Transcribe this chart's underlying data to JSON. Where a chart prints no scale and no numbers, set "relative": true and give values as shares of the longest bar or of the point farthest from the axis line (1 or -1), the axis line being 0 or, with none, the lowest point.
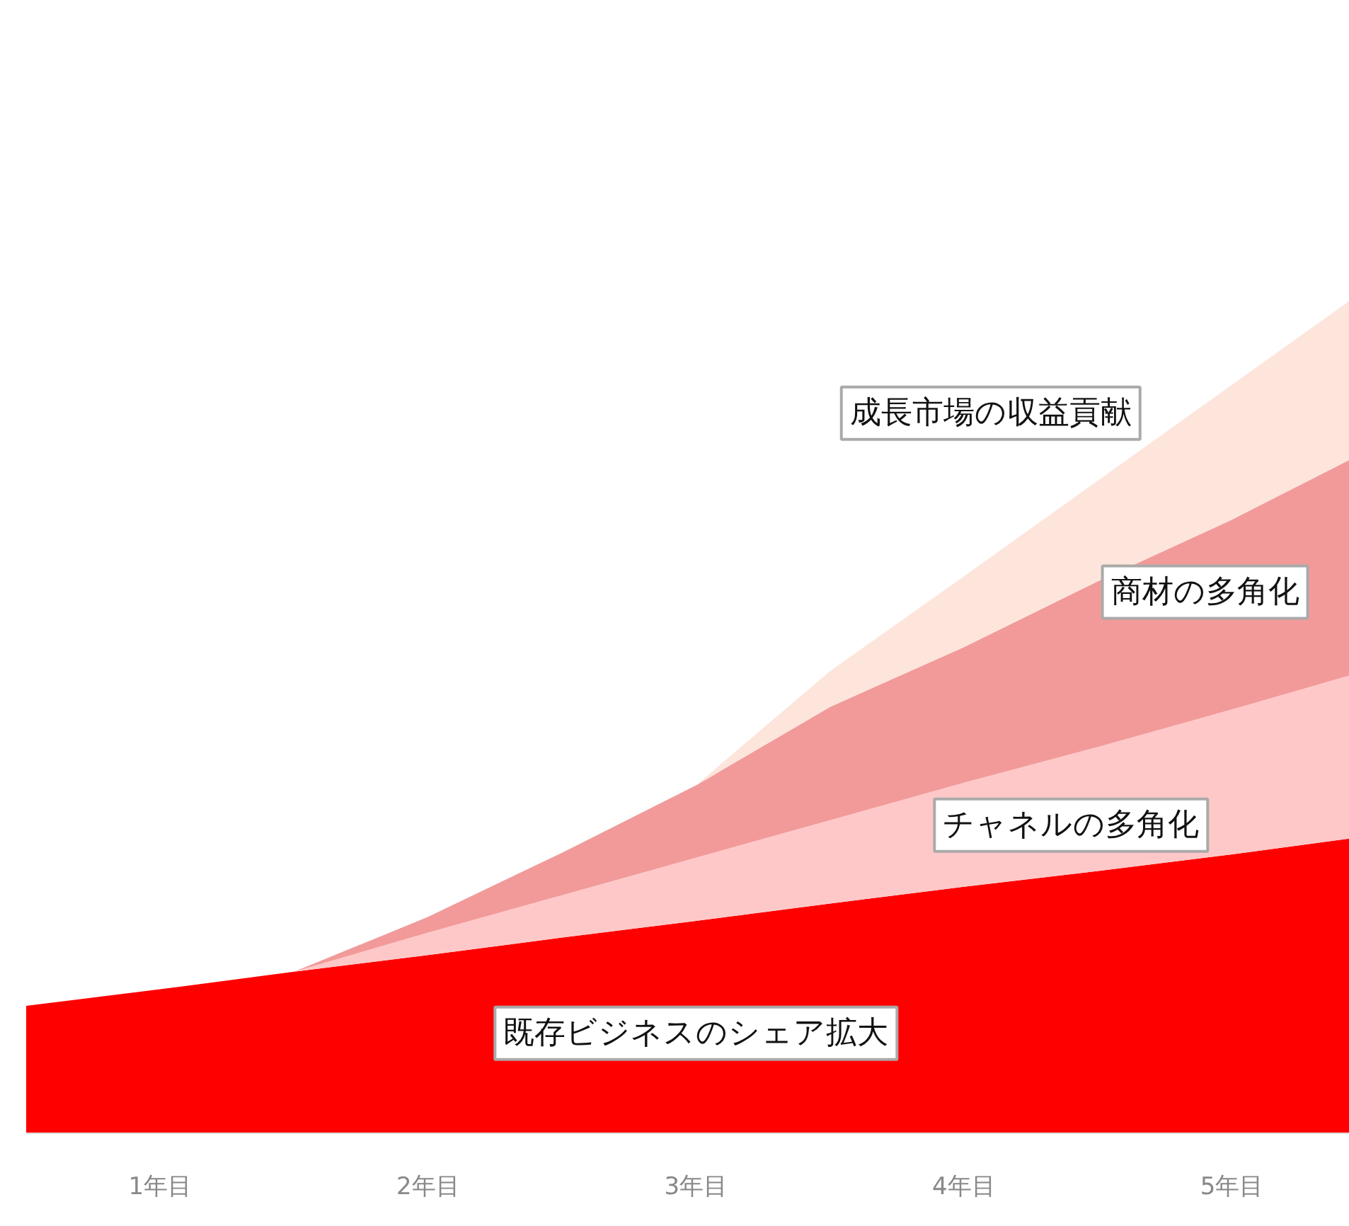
{
  "chart_data": {
    "type": "area",
    "stacked": true,
    "relative": true,
    "x": [
      0.5,
      1,
      1.5,
      2,
      2.5,
      3,
      3.5,
      4,
      4.5,
      5,
      5.44
    ],
    "xlim": [
      0.5,
      5.44
    ],
    "xticks": [
      {
        "value": 1,
        "label": "1年目"
      },
      {
        "value": 2,
        "label": "2年目"
      },
      {
        "value": 3,
        "label": "3年目"
      },
      {
        "value": 4,
        "label": "4年目"
      },
      {
        "value": 5,
        "label": "5年目"
      }
    ],
    "series": [
      {
        "name": "既存ビジネスのシェア拡大",
        "color": "#ff0000",
        "values": [
          0.153,
          0.173,
          0.194,
          0.214,
          0.235,
          0.255,
          0.276,
          0.296,
          0.315,
          0.335,
          0.354
        ]
      },
      {
        "name": "チャネルの多角化",
        "color": "#ffc8c8",
        "values": [
          0,
          0,
          0,
          0.027,
          0.051,
          0.076,
          0.1,
          0.125,
          0.149,
          0.174,
          0.196
        ]
      },
      {
        "name": "商材の多角化",
        "color": "#f29a9a",
        "values": [
          0,
          0,
          0,
          0.019,
          0.051,
          0.087,
          0.136,
          0.163,
          0.199,
          0.228,
          0.259
        ]
      },
      {
        "name": "成長市場の収益貢献",
        "color": "#fde5db",
        "values": [
          0,
          0,
          0,
          0,
          0,
          0,
          0.043,
          0.085,
          0.121,
          0.162,
          0.191
        ]
      }
    ]
  }
}
